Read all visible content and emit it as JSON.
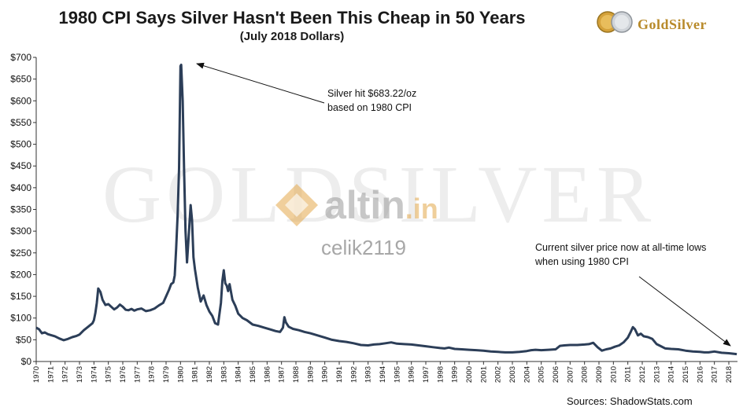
{
  "header": {
    "title": "1980 CPI Says Silver Hasn't Been This Cheap in 50 Years",
    "subtitle": "(July 2018 Dollars)"
  },
  "logo": {
    "text": "GoldSilver"
  },
  "watermarks": {
    "background": "GOLDSILVER",
    "altin": "altin",
    "altin_suffix": ".in",
    "user": "celik2119"
  },
  "annotations": {
    "peak_line1": "Silver hit $683.22/oz",
    "peak_line2": "based on 1980 CPI",
    "current_line1": "Current silver price now at all-time lows",
    "current_line2": "when using 1980 CPI"
  },
  "footer": {
    "sources": "Sources: ShadowStats.com"
  },
  "colors": {
    "line": "#2c3e58",
    "gold": "#b88a2a",
    "watermark": "#ededed"
  },
  "chart_data": {
    "type": "line",
    "title": "1980 CPI Says Silver Hasn't Been This Cheap in 50 Years",
    "subtitle": "(July 2018 Dollars)",
    "xlabel": "",
    "ylabel": "",
    "ylim": [
      0,
      700
    ],
    "xlim": [
      1970,
      2018.6
    ],
    "y_ticks": [
      0,
      50,
      100,
      150,
      200,
      250,
      300,
      350,
      400,
      450,
      500,
      550,
      600,
      650,
      700
    ],
    "y_tick_labels": [
      "$0",
      "$50",
      "$100",
      "$150",
      "$200",
      "$250",
      "$300",
      "$350",
      "$400",
      "$450",
      "$500",
      "$550",
      "$600",
      "$650",
      "$700"
    ],
    "x_tick_labels": [
      "1970",
      "1971",
      "1972",
      "1973",
      "1974",
      "1975",
      "1976",
      "1977",
      "1978",
      "1979",
      "1980",
      "1981",
      "1982",
      "1983",
      "1984",
      "1985",
      "1986",
      "1987",
      "1988",
      "1989",
      "1990",
      "1991",
      "1992",
      "1993",
      "1994",
      "1995",
      "1996",
      "1997",
      "1998",
      "1999",
      "2000",
      "2001",
      "2002",
      "2003",
      "2004",
      "2005",
      "2006",
      "2007",
      "2008",
      "2009",
      "2010",
      "2011",
      "2012",
      "2013",
      "2014",
      "2015",
      "2016",
      "2017",
      "2018"
    ],
    "grid": false,
    "series": [
      {
        "x": [
          1970.0,
          1970.2,
          1970.4,
          1970.6,
          1970.8,
          1971.0,
          1971.3,
          1971.6,
          1971.9,
          1972.2,
          1972.5,
          1972.8,
          1973.0,
          1973.3,
          1973.6,
          1973.9,
          1974.0,
          1974.1,
          1974.2,
          1974.3,
          1974.45,
          1974.6,
          1974.8,
          1975.0,
          1975.2,
          1975.4,
          1975.6,
          1975.8,
          1976.0,
          1976.2,
          1976.4,
          1976.6,
          1976.8,
          1977.0,
          1977.3,
          1977.6,
          1977.9,
          1978.2,
          1978.5,
          1978.8,
          1979.0,
          1979.2,
          1979.35,
          1979.5,
          1979.6,
          1979.7,
          1979.8,
          1979.9,
          1980.0,
          1980.05,
          1980.15,
          1980.25,
          1980.35,
          1980.45,
          1980.6,
          1980.7,
          1980.8,
          1980.9,
          1981.0,
          1981.2,
          1981.4,
          1981.6,
          1981.8,
          1982.0,
          1982.2,
          1982.4,
          1982.6,
          1982.8,
          1982.9,
          1983.0,
          1983.1,
          1983.2,
          1983.3,
          1983.4,
          1983.6,
          1983.8,
          1984.0,
          1984.3,
          1984.6,
          1985.0,
          1985.4,
          1985.8,
          1986.2,
          1986.6,
          1986.9,
          1987.1,
          1987.2,
          1987.3,
          1987.5,
          1987.8,
          1988.2,
          1988.6,
          1989.0,
          1989.5,
          1990.0,
          1990.5,
          1991.0,
          1991.5,
          1992.0,
          1992.5,
          1993.0,
          1993.4,
          1993.8,
          1994.2,
          1994.6,
          1995.0,
          1995.5,
          1996.0,
          1996.5,
          1997.0,
          1997.5,
          1998.0,
          1998.3,
          1998.6,
          1999.0,
          1999.5,
          2000.0,
          2000.5,
          2001.0,
          2001.5,
          2002.0,
          2002.5,
          2003.0,
          2003.5,
          2004.0,
          2004.3,
          2004.6,
          2005.0,
          2005.5,
          2006.0,
          2006.3,
          2006.6,
          2007.0,
          2007.5,
          2008.0,
          2008.3,
          2008.6,
          2008.9,
          2009.2,
          2009.5,
          2009.8,
          2010.1,
          2010.4,
          2010.7,
          2011.0,
          2011.2,
          2011.35,
          2011.5,
          2011.7,
          2011.9,
          2012.1,
          2012.4,
          2012.7,
          2013.0,
          2013.3,
          2013.6,
          2014.0,
          2014.5,
          2015.0,
          2015.5,
          2016.0,
          2016.3,
          2016.6,
          2017.0,
          2017.5,
          2018.0,
          2018.55
        ],
        "values": [
          78,
          74,
          65,
          67,
          63,
          61,
          58,
          53,
          49,
          52,
          56,
          59,
          62,
          72,
          80,
          88,
          95,
          112,
          135,
          168,
          160,
          142,
          130,
          132,
          126,
          120,
          124,
          131,
          126,
          119,
          118,
          121,
          117,
          120,
          122,
          116,
          118,
          122,
          129,
          135,
          150,
          165,
          178,
          182,
          198,
          260,
          338,
          445,
          680,
          683,
          600,
          440,
          300,
          228,
          305,
          360,
          325,
          240,
          212,
          170,
          138,
          152,
          130,
          115,
          105,
          88,
          85,
          135,
          185,
          210,
          180,
          175,
          162,
          178,
          142,
          128,
          110,
          100,
          95,
          85,
          82,
          78,
          74,
          70,
          68,
          78,
          102,
          90,
          80,
          75,
          72,
          68,
          65,
          60,
          55,
          50,
          47,
          45,
          42,
          38,
          37,
          39,
          40,
          42,
          44,
          41,
          40,
          39,
          37,
          35,
          33,
          31,
          30,
          32,
          29,
          28,
          27,
          26,
          25,
          23,
          22,
          21,
          21,
          22,
          24,
          26,
          27,
          26,
          27,
          28,
          36,
          37,
          38,
          38,
          39,
          40,
          43,
          33,
          25,
          28,
          30,
          34,
          37,
          44,
          55,
          68,
          79,
          74,
          60,
          64,
          58,
          56,
          52,
          40,
          35,
          30,
          29,
          28,
          25,
          23,
          22,
          21,
          21,
          23,
          20,
          19,
          17
        ]
      }
    ]
  }
}
